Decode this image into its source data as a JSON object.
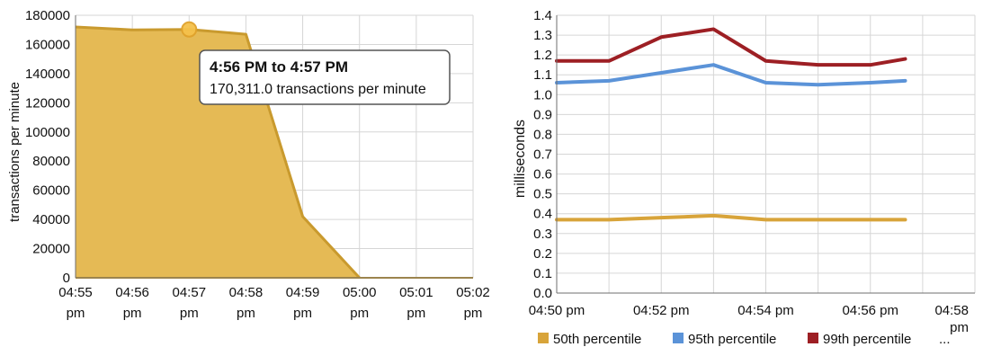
{
  "colors": {
    "grid": "#d6d6d6",
    "axis": "#6f6f6f",
    "gold": "#e5ba55",
    "goldEdge": "#c99a2e",
    "tooltipBorder": "#555555",
    "blue": "#5b93d8",
    "red": "#9d1f24",
    "yellow": "#d8a43a"
  },
  "chart_data": [
    {
      "type": "area",
      "xlabel": "",
      "ylabel": "transactions per minute",
      "x": [
        "04:55 pm",
        "04:56 pm",
        "04:57 pm",
        "04:58 pm",
        "04:59 pm",
        "05:00 pm",
        "05:01 pm",
        "05:02 pm"
      ],
      "y_ticks": [
        0,
        20000,
        40000,
        60000,
        80000,
        100000,
        120000,
        140000,
        160000,
        180000
      ],
      "ylim": [
        0,
        180000
      ],
      "grid": true,
      "series": [
        {
          "x": [
            "04:55 pm",
            "04:56 pm",
            "04:57 pm",
            "04:58 pm",
            "04:59 pm",
            "05:00 pm"
          ],
          "values": [
            172000,
            170000,
            170311,
            167000,
            42000,
            0
          ]
        }
      ],
      "tooltip": {
        "title": "4:56 PM to 4:57 PM",
        "text": "170,311.0 transactions per minute"
      }
    },
    {
      "type": "line",
      "xlabel": "",
      "ylabel": "milliseconds",
      "x_ticks": [
        "04:50 pm",
        "04:52 pm",
        "04:54 pm",
        "04:56 pm",
        "04:58 pm"
      ],
      "y_ticks": [
        0.0,
        0.1,
        0.2,
        0.3,
        0.4,
        0.5,
        0.6,
        0.7,
        0.8,
        0.9,
        1.0,
        1.1,
        1.2,
        1.3,
        1.4
      ],
      "ylim": [
        0.0,
        1.4
      ],
      "grid": true,
      "legend": "bottom",
      "legend_ellipsis": "...",
      "series": [
        {
          "name": "50th percentile",
          "x": [
            "04:50 pm",
            "04:51 pm",
            "04:52 pm",
            "04:53 pm",
            "04:54 pm",
            "04:55 pm",
            "04:56 pm",
            "04:56:40 pm"
          ],
          "values": [
            0.37,
            0.37,
            0.38,
            0.39,
            0.37,
            0.37,
            0.37,
            0.37
          ]
        },
        {
          "name": "95th percentile",
          "x": [
            "04:50 pm",
            "04:51 pm",
            "04:52 pm",
            "04:53 pm",
            "04:54 pm",
            "04:55 pm",
            "04:56 pm",
            "04:56:40 pm"
          ],
          "values": [
            1.06,
            1.07,
            1.11,
            1.15,
            1.06,
            1.05,
            1.06,
            1.07
          ]
        },
        {
          "name": "99th percentile",
          "x": [
            "04:50 pm",
            "04:51 pm",
            "04:52 pm",
            "04:53 pm",
            "04:54 pm",
            "04:55 pm",
            "04:56 pm",
            "04:56:40 pm"
          ],
          "values": [
            1.17,
            1.17,
            1.29,
            1.33,
            1.17,
            1.15,
            1.15,
            1.18
          ]
        }
      ]
    }
  ]
}
